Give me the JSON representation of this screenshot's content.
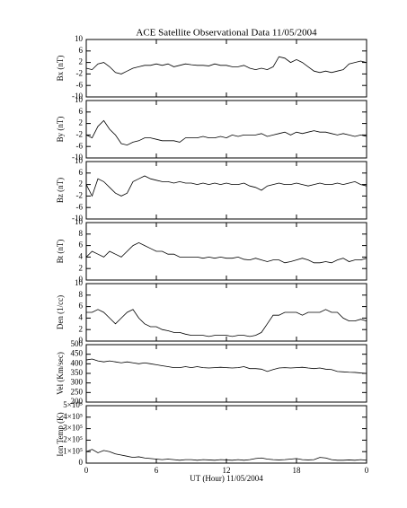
{
  "chart_data": [
    {
      "type": "line",
      "title": "ACE Satellite Observational Data   11/05/2004",
      "ylabel": "Bx (nT)",
      "color": "#000000",
      "x": [
        0,
        0.5,
        1,
        1.5,
        2,
        2.5,
        3,
        3.5,
        4,
        4.5,
        5,
        5.5,
        6,
        6.5,
        7,
        7.5,
        8,
        8.5,
        9,
        9.5,
        10,
        10.5,
        11,
        11.5,
        12,
        12.5,
        13,
        13.5,
        14,
        14.5,
        15,
        15.5,
        16,
        16.5,
        17,
        17.5,
        18,
        18.5,
        19,
        19.5,
        20,
        20.5,
        21,
        21.5,
        22,
        22.5,
        23,
        23.5,
        24
      ],
      "values": [
        0,
        -0.5,
        1.5,
        2,
        0.5,
        -1.5,
        -2,
        -1,
        0,
        0.5,
        1,
        1,
        1.5,
        1,
        1.5,
        0.5,
        1,
        1.5,
        1.2,
        1,
        1,
        0.8,
        1.5,
        1,
        1,
        0.5,
        0.5,
        1,
        0,
        -0.5,
        0,
        -0.5,
        0.5,
        4,
        3.5,
        2,
        3,
        2,
        0.5,
        -1,
        -1.5,
        -1,
        -1.5,
        -1,
        -0.5,
        1.5,
        2,
        2.5,
        2
      ],
      "xlim": [
        0,
        24
      ],
      "ylim": [
        -10,
        10
      ],
      "yticks": [
        -10,
        -6,
        -2,
        2,
        6,
        10
      ]
    },
    {
      "type": "line",
      "ylabel": "By (nT)",
      "color": "#000000",
      "x": [
        0,
        0.5,
        1,
        1.5,
        2,
        2.5,
        3,
        3.5,
        4,
        4.5,
        5,
        5.5,
        6,
        6.5,
        7,
        7.5,
        8,
        8.5,
        9,
        9.5,
        10,
        10.5,
        11,
        11.5,
        12,
        12.5,
        13,
        13.5,
        14,
        14.5,
        15,
        15.5,
        16,
        16.5,
        17,
        17.5,
        18,
        18.5,
        19,
        19.5,
        20,
        20.5,
        21,
        21.5,
        22,
        22.5,
        23,
        23.5,
        24
      ],
      "values": [
        -2,
        -3,
        1,
        3,
        0,
        -2,
        -5,
        -5.5,
        -4.5,
        -4,
        -3,
        -3,
        -3.5,
        -4,
        -4,
        -4,
        -4.5,
        -3,
        -3,
        -3,
        -2.5,
        -3,
        -3,
        -2.5,
        -3,
        -2,
        -2.5,
        -2,
        -2,
        -2,
        -1.5,
        -2.5,
        -2,
        -1.5,
        -1,
        -2,
        -1,
        -1.5,
        -1,
        -0.5,
        -1,
        -1,
        -1.5,
        -2,
        -1.5,
        -2,
        -2.5,
        -2,
        -2.5
      ],
      "xlim": [
        0,
        24
      ],
      "ylim": [
        -10,
        10
      ],
      "yticks": [
        -10,
        -6,
        -2,
        2,
        6,
        10
      ]
    },
    {
      "type": "line",
      "ylabel": "Bz (nT)",
      "color": "#000000",
      "x": [
        0,
        0.5,
        1,
        1.5,
        2,
        2.5,
        3,
        3.5,
        4,
        4.5,
        5,
        5.5,
        6,
        6.5,
        7,
        7.5,
        8,
        8.5,
        9,
        9.5,
        10,
        10.5,
        11,
        11.5,
        12,
        12.5,
        13,
        13.5,
        14,
        14.5,
        15,
        15.5,
        16,
        16.5,
        17,
        17.5,
        18,
        18.5,
        19,
        19.5,
        20,
        20.5,
        21,
        21.5,
        22,
        22.5,
        23,
        23.5,
        24
      ],
      "values": [
        2,
        -2,
        4,
        3,
        1,
        -1,
        -2,
        -1,
        3,
        4,
        5,
        4,
        3.5,
        3,
        3,
        2.5,
        3,
        2.5,
        2.5,
        2,
        2.5,
        2,
        2.5,
        2,
        2.5,
        2,
        2,
        2.5,
        1.5,
        1,
        0,
        1.5,
        2,
        2.5,
        2,
        2,
        2.5,
        2,
        1.5,
        2,
        2.5,
        2,
        2,
        2.5,
        2,
        2.5,
        3,
        2,
        1.5
      ],
      "xlim": [
        0,
        24
      ],
      "ylim": [
        -10,
        10
      ],
      "yticks": [
        -10,
        -6,
        -2,
        2,
        6,
        10
      ]
    },
    {
      "type": "line",
      "ylabel": "Bt (nT)",
      "color": "#000000",
      "x": [
        0,
        0.5,
        1,
        1.5,
        2,
        2.5,
        3,
        3.5,
        4,
        4.5,
        5,
        5.5,
        6,
        6.5,
        7,
        7.5,
        8,
        8.5,
        9,
        9.5,
        10,
        10.5,
        11,
        11.5,
        12,
        12.5,
        13,
        13.5,
        14,
        14.5,
        15,
        15.5,
        16,
        16.5,
        17,
        17.5,
        18,
        18.5,
        19,
        19.5,
        20,
        20.5,
        21,
        21.5,
        22,
        22.5,
        23,
        23.5,
        24
      ],
      "values": [
        4,
        5,
        4.5,
        4,
        5,
        4.5,
        4,
        5,
        6,
        6.5,
        6,
        5.5,
        5,
        5,
        4.5,
        4.5,
        4,
        4,
        4,
        4,
        3.8,
        4,
        3.8,
        4,
        3.8,
        3.8,
        4,
        3.6,
        3.5,
        3.8,
        3.5,
        3.2,
        3.5,
        3.5,
        3,
        3.2,
        3.5,
        3.8,
        3.5,
        3,
        3,
        3.2,
        3,
        3.5,
        3.8,
        3.2,
        3.5,
        3.5,
        3.8
      ],
      "xlim": [
        0,
        24
      ],
      "ylim": [
        0,
        10
      ],
      "yticks": [
        0,
        2,
        4,
        6,
        8,
        10
      ]
    },
    {
      "type": "line",
      "ylabel": "Den (1/cc)",
      "color": "#000000",
      "x": [
        0,
        0.5,
        1,
        1.5,
        2,
        2.5,
        3,
        3.5,
        4,
        4.5,
        5,
        5.5,
        6,
        6.5,
        7,
        7.5,
        8,
        8.5,
        9,
        9.5,
        10,
        10.5,
        11,
        11.5,
        12,
        12.5,
        13,
        13.5,
        14,
        14.5,
        15,
        15.5,
        16,
        16.5,
        17,
        17.5,
        18,
        18.5,
        19,
        19.5,
        20,
        20.5,
        21,
        21.5,
        22,
        22.5,
        23,
        23.5,
        24
      ],
      "values": [
        5,
        5,
        5.5,
        5,
        4,
        3,
        4,
        5,
        5.5,
        4,
        3,
        2.5,
        2.5,
        2,
        1.8,
        1.5,
        1.5,
        1.2,
        1,
        1,
        1,
        0.8,
        1,
        1,
        1,
        0.8,
        1,
        1,
        0.8,
        1,
        1.5,
        3,
        4.5,
        4.5,
        5,
        5,
        5,
        4.5,
        5,
        5,
        5,
        5.5,
        5,
        5,
        4,
        3.5,
        3.5,
        3.8,
        3.5
      ],
      "xlim": [
        0,
        24
      ],
      "ylim": [
        0,
        10
      ],
      "yticks": [
        0,
        2,
        4,
        6,
        8,
        10
      ]
    },
    {
      "type": "line",
      "ylabel": "Vel (Km/sec)",
      "color": "#000000",
      "x": [
        0,
        0.5,
        1,
        1.5,
        2,
        2.5,
        3,
        3.5,
        4,
        4.5,
        5,
        5.5,
        6,
        6.5,
        7,
        7.5,
        8,
        8.5,
        9,
        9.5,
        10,
        10.5,
        11,
        11.5,
        12,
        12.5,
        13,
        13.5,
        14,
        14.5,
        15,
        15.5,
        16,
        16.5,
        17,
        17.5,
        18,
        18.5,
        19,
        19.5,
        20,
        20.5,
        21,
        21.5,
        22,
        22.5,
        23,
        23.5,
        24
      ],
      "values": [
        420,
        425,
        415,
        410,
        415,
        410,
        405,
        410,
        405,
        400,
        405,
        400,
        395,
        390,
        385,
        380,
        380,
        385,
        380,
        385,
        380,
        378,
        380,
        382,
        380,
        378,
        380,
        385,
        375,
        375,
        372,
        360,
        370,
        378,
        380,
        378,
        380,
        382,
        378,
        375,
        378,
        372,
        370,
        360,
        358,
        356,
        355,
        352,
        350
      ],
      "xlim": [
        0,
        24
      ],
      "ylim": [
        200,
        500
      ],
      "yticks": [
        200,
        250,
        300,
        350,
        400,
        450,
        500
      ]
    },
    {
      "type": "line",
      "ylabel": "Ion Temp (K)",
      "xlabel": "UT (Hour)  11/05/2004",
      "color": "#000000",
      "x": [
        0,
        0.5,
        1,
        1.5,
        2,
        2.5,
        3,
        3.5,
        4,
        4.5,
        5,
        5.5,
        6,
        6.5,
        7,
        7.5,
        8,
        8.5,
        9,
        9.5,
        10,
        10.5,
        11,
        11.5,
        12,
        12.5,
        13,
        13.5,
        14,
        14.5,
        15,
        15.5,
        16,
        16.5,
        17,
        17.5,
        18,
        18.5,
        19,
        19.5,
        20,
        20.5,
        21,
        21.5,
        22,
        22.5,
        23,
        23.5,
        24
      ],
      "values": [
        100000,
        120000,
        90000,
        110000,
        100000,
        80000,
        70000,
        60000,
        50000,
        55000,
        45000,
        40000,
        35000,
        30000,
        35000,
        30000,
        25000,
        30000,
        30000,
        25000,
        30000,
        28000,
        25000,
        30000,
        28000,
        25000,
        30000,
        25000,
        30000,
        40000,
        45000,
        35000,
        30000,
        28000,
        30000,
        35000,
        40000,
        30000,
        28000,
        30000,
        50000,
        45000,
        30000,
        25000,
        25000,
        28000,
        25000,
        30000,
        25000
      ],
      "xlim": [
        0,
        24
      ],
      "ylim": [
        0,
        500000
      ],
      "yticks": [
        0,
        {
          "value": 100000,
          "label": "1×10⁵"
        },
        {
          "value": 200000,
          "label": "2×10⁵"
        },
        {
          "value": 300000,
          "label": "3×10⁵"
        },
        {
          "value": 400000,
          "label": "4×10⁵"
        },
        {
          "value": 500000,
          "label": "5×10⁵"
        }
      ],
      "xticks": [
        0,
        6,
        12,
        18,
        {
          "value": 24,
          "label": "0"
        }
      ]
    }
  ]
}
